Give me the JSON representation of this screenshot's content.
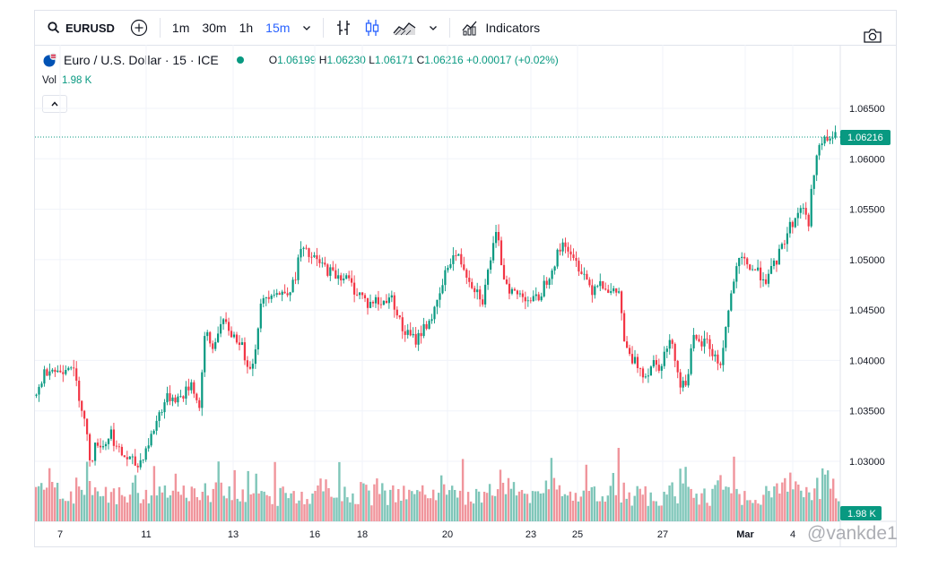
{
  "toolbar": {
    "symbol": "EURUSD",
    "intervals": [
      "1m",
      "30m",
      "1h",
      "15m"
    ],
    "active_interval": "15m",
    "indicators_label": "Indicators"
  },
  "legend": {
    "title": "Euro / U.S. Dollar · 15 · ICE",
    "open_label": "O",
    "open": "1.06199",
    "high_label": "H",
    "high": "1.06230",
    "low_label": "L",
    "low": "1.06171",
    "close_label": "C",
    "close": "1.06216",
    "change": "+0.00017 (+0.02%)",
    "vol_label": "Vol",
    "vol_value": "1.98 K"
  },
  "colors": {
    "up": "#089981",
    "down": "#f23645",
    "accent": "#2962ff",
    "vol_up": "#7fc6b9",
    "vol_down": "#f0959c"
  },
  "watermark": "@vankde1",
  "chart_data": {
    "type": "candlestick",
    "y_ticks": [
      "1.06500",
      "1.06000",
      "1.05500",
      "1.05000",
      "1.04500",
      "1.04000",
      "1.03500",
      "1.03000"
    ],
    "x_ticks": [
      "7",
      "11",
      "13",
      "16",
      "18",
      "20",
      "23",
      "25",
      "27",
      "Mar",
      "4"
    ],
    "ylim": [
      1.0275,
      1.0675
    ],
    "last_price": "1.06216",
    "last_volume": "1.98 K",
    "price_path": [
      1.0365,
      1.0385,
      1.0395,
      1.0388,
      1.0392,
      1.04,
      1.0375,
      1.0345,
      1.03,
      1.032,
      1.0315,
      1.033,
      1.031,
      1.0305,
      1.03,
      1.0295,
      1.031,
      1.0325,
      1.0345,
      1.036,
      1.0365,
      1.0362,
      1.0368,
      1.038,
      1.035,
      1.043,
      1.041,
      1.0435,
      1.0435,
      1.0425,
      1.042,
      1.04,
      1.0395,
      1.045,
      1.0465,
      1.047,
      1.0465,
      1.047,
      1.0475,
      1.051,
      1.0505,
      1.05,
      1.0495,
      1.049,
      1.0485,
      1.0485,
      1.048,
      1.047,
      1.0465,
      1.0455,
      1.046,
      1.0455,
      1.0465,
      1.0455,
      1.043,
      1.0425,
      1.042,
      1.043,
      1.044,
      1.045,
      1.0475,
      1.05,
      1.0505,
      1.0495,
      1.048,
      1.047,
      1.046,
      1.05,
      1.0525,
      1.0485,
      1.047,
      1.0465,
      1.0465,
      1.046,
      1.046,
      1.0475,
      1.049,
      1.0505,
      1.052,
      1.05,
      1.0495,
      1.0485,
      1.047,
      1.048,
      1.0475,
      1.0465,
      1.047,
      1.041,
      1.04,
      1.0395,
      1.0385,
      1.04,
      1.0395,
      1.041,
      1.042,
      1.0375,
      1.038,
      1.042,
      1.0415,
      1.042,
      1.0405,
      1.0395,
      1.044,
      1.048,
      1.05,
      1.0495,
      1.049,
      1.0485,
      1.048,
      1.0495,
      1.051,
      1.053,
      1.054,
      1.0555,
      1.0535,
      1.06,
      1.0615,
      1.062,
      1.0621
    ],
    "volume_peak_positions": [
      0.01,
      0.06,
      0.12,
      0.22,
      0.27,
      0.36,
      0.42,
      0.5,
      0.58,
      0.64,
      0.72,
      0.8,
      0.86,
      0.93,
      0.98
    ]
  }
}
